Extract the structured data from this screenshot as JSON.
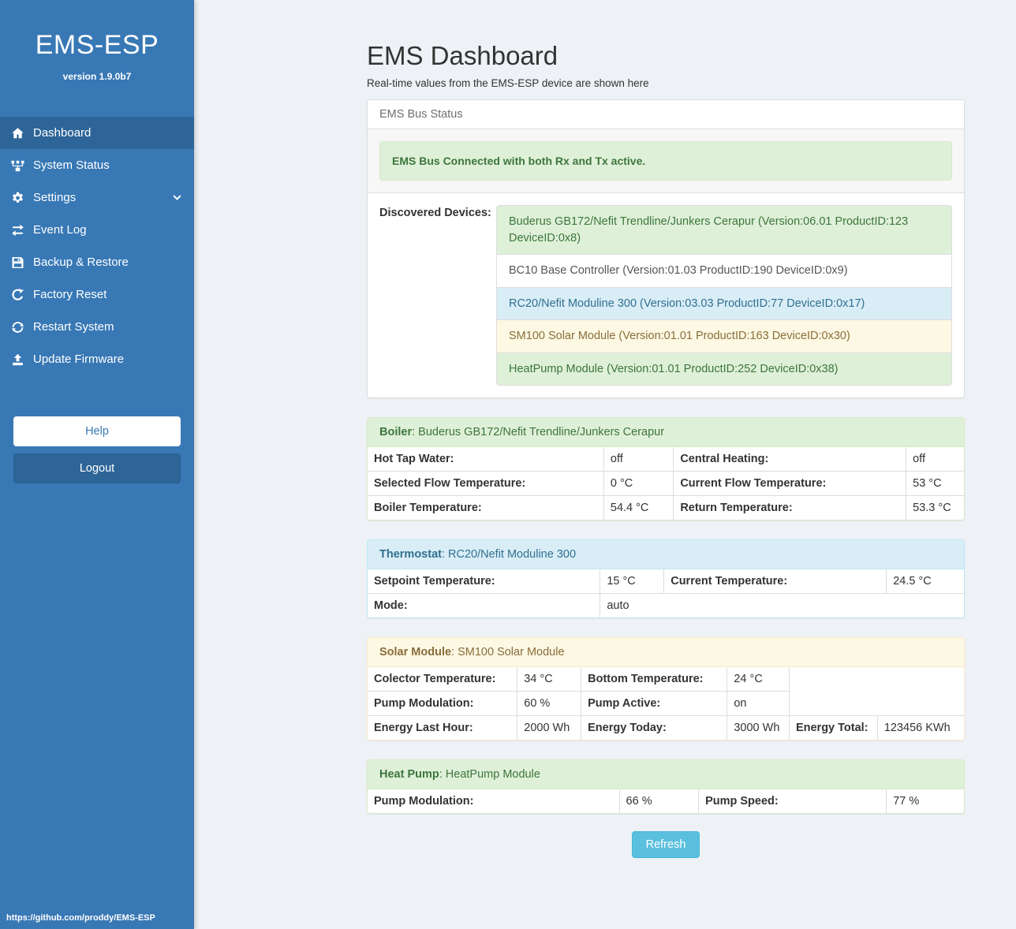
{
  "sidebar": {
    "title": "EMS-ESP",
    "version": "version 1.9.0b7",
    "items": [
      {
        "label": "Dashboard",
        "icon": "home-icon",
        "active": true,
        "chevron": false
      },
      {
        "label": "System Status",
        "icon": "sitemap-icon",
        "active": false,
        "chevron": false
      },
      {
        "label": "Settings",
        "icon": "gear-icon",
        "active": false,
        "chevron": true
      },
      {
        "label": "Event Log",
        "icon": "exchange-icon",
        "active": false,
        "chevron": false
      },
      {
        "label": "Backup & Restore",
        "icon": "save-icon",
        "active": false,
        "chevron": false
      },
      {
        "label": "Factory Reset",
        "icon": "repeat-icon",
        "active": false,
        "chevron": false
      },
      {
        "label": "Restart System",
        "icon": "sync-icon",
        "active": false,
        "chevron": false
      },
      {
        "label": "Update Firmware",
        "icon": "upload-icon",
        "active": false,
        "chevron": false
      }
    ],
    "help_label": "Help",
    "logout_label": "Logout",
    "footer_link": "https://github.com/proddy/EMS-ESP"
  },
  "header": {
    "title": "EMS Dashboard",
    "subtitle": "Real-time values from the EMS-ESP device are shown here"
  },
  "bus_panel": {
    "heading": "EMS Bus Status",
    "alert": "EMS Bus Connected with both Rx and Tx active.",
    "devices_label": "Discovered Devices:",
    "devices": [
      {
        "text": "Buderus GB172/Nefit Trendline/Junkers Cerapur (Version:06.01 ProductID:123 DeviceID:0x8)",
        "variant": "success"
      },
      {
        "text": "BC10 Base Controller (Version:01.03 ProductID:190 DeviceID:0x9)",
        "variant": "default"
      },
      {
        "text": "RC20/Nefit Moduline 300 (Version:03.03 ProductID:77 DeviceID:0x17)",
        "variant": "info"
      },
      {
        "text": "SM100 Solar Module (Version:01.01 ProductID:163 DeviceID:0x30)",
        "variant": "warning"
      },
      {
        "text": "HeatPump Module (Version:01.01 ProductID:252 DeviceID:0x38)",
        "variant": "success"
      }
    ]
  },
  "device_tables": [
    {
      "key": "boiler",
      "variant": "success",
      "title_label": "Boiler",
      "title_device": "Buderus GB172/Nefit Trendline/Junkers Cerapur",
      "col_widths": [
        "39.6%",
        "11.7%",
        "39%",
        "9.7%"
      ],
      "rows": [
        [
          {
            "t": "Hot Tap Water:",
            "k": "label"
          },
          {
            "t": "off",
            "k": "value"
          },
          {
            "t": "Central Heating:",
            "k": "label"
          },
          {
            "t": "off",
            "k": "value"
          }
        ],
        [
          {
            "t": "Selected Flow Temperature:",
            "k": "label"
          },
          {
            "t": "0 °C",
            "k": "value"
          },
          {
            "t": "Current Flow Temperature:",
            "k": "label"
          },
          {
            "t": "53 °C",
            "k": "value"
          }
        ],
        [
          {
            "t": "Boiler Temperature:",
            "k": "label"
          },
          {
            "t": "54.4 °C",
            "k": "value"
          },
          {
            "t": "Return Temperature:",
            "k": "label"
          },
          {
            "t": "53.3 °C",
            "k": "value"
          }
        ]
      ]
    },
    {
      "key": "thermostat",
      "variant": "info",
      "title_label": "Thermostat",
      "title_device": "RC20/Nefit Moduline 300",
      "col_widths": [
        "39%",
        "10.7%",
        "37.3%",
        "13%"
      ],
      "rows": [
        [
          {
            "t": "Setpoint Temperature:",
            "k": "label"
          },
          {
            "t": "15 °C",
            "k": "value"
          },
          {
            "t": "Current Temperature:",
            "k": "label"
          },
          {
            "t": "24.5 °C",
            "k": "value"
          }
        ],
        [
          {
            "t": "Mode:",
            "k": "label"
          },
          {
            "t": "auto",
            "k": "value",
            "cs": 3
          }
        ]
      ]
    },
    {
      "key": "solar-module",
      "variant": "warning",
      "title_label": "Solar Module",
      "title_device": "SM100 Solar Module",
      "col_widths": [
        "25.1%",
        "10.7%",
        "24.5%",
        "10.4%",
        "14.8%",
        "14.5%"
      ],
      "rows": [
        [
          {
            "t": "Colector Temperature:",
            "k": "label"
          },
          {
            "t": "34 °C",
            "k": "value"
          },
          {
            "t": "Bottom Temperature:",
            "k": "label"
          },
          {
            "t": "24 °C",
            "k": "value"
          },
          {
            "t": "",
            "k": "filler",
            "cs": 2
          }
        ],
        [
          {
            "t": "Pump Modulation:",
            "k": "label"
          },
          {
            "t": "60 %",
            "k": "value"
          },
          {
            "t": "Pump Active:",
            "k": "label"
          },
          {
            "t": "on",
            "k": "value"
          },
          {
            "t": "",
            "k": "filler",
            "cs": 2
          }
        ],
        [
          {
            "t": "Energy Last Hour:",
            "k": "label"
          },
          {
            "t": "2000 Wh",
            "k": "value"
          },
          {
            "t": "Energy Today:",
            "k": "label"
          },
          {
            "t": "3000 Wh",
            "k": "value"
          },
          {
            "t": "Energy Total:",
            "k": "label"
          },
          {
            "t": "123456 KWh",
            "k": "value"
          }
        ]
      ]
    },
    {
      "key": "heat-pump",
      "variant": "success",
      "title_label": "Heat Pump",
      "title_device": "HeatPump Module",
      "col_widths": [
        "42.2%",
        "13.3%",
        "31.5%",
        "13%"
      ],
      "rows": [
        [
          {
            "t": "Pump Modulation:",
            "k": "label"
          },
          {
            "t": "66 %",
            "k": "value"
          },
          {
            "t": "Pump Speed:",
            "k": "label"
          },
          {
            "t": "77 %",
            "k": "value"
          }
        ]
      ]
    }
  ],
  "refresh_label": "Refresh",
  "colors": {
    "sidebar_blue": "#3878b5",
    "sidebar_active_blue": "#2d6598",
    "success_bg": "#dff0d8",
    "success_text": "#3c763d",
    "info_bg": "#d9edf7",
    "info_text": "#31708f",
    "warning_bg": "#fcf8e3",
    "warning_text": "#8a6d3b",
    "refresh_button": "#5bc0de",
    "page_bg": "#eef1f5"
  }
}
